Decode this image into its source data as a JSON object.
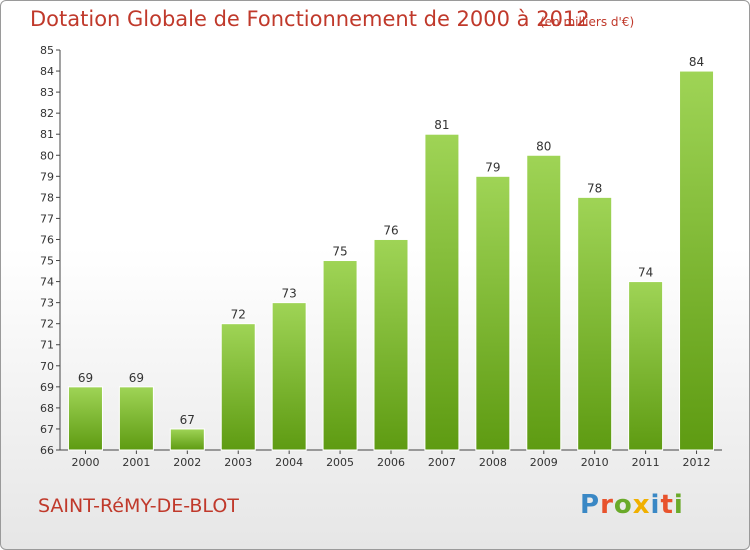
{
  "chart_data": {
    "type": "bar",
    "title": "Dotation Globale de Fonctionnement de 2000 à 2012",
    "subtitle": "(en milliers d'€)",
    "categories": [
      "2000",
      "2001",
      "2002",
      "2003",
      "2004",
      "2005",
      "2006",
      "2007",
      "2008",
      "2009",
      "2010",
      "2011",
      "2012"
    ],
    "values": [
      69,
      69,
      67,
      72,
      73,
      75,
      76,
      81,
      79,
      80,
      78,
      74,
      84
    ],
    "ylim": [
      66,
      85
    ],
    "yticks": [
      66,
      67,
      68,
      69,
      70,
      71,
      72,
      73,
      74,
      75,
      76,
      77,
      78,
      79,
      80,
      81,
      82,
      83,
      84,
      85
    ],
    "grid": false,
    "bar_color_top": "#9fd456",
    "bar_color_bottom": "#5e9b12"
  },
  "footer": {
    "commune": "SAINT-RéMY-DE-BLOT",
    "logo": [
      "P",
      "r",
      "o",
      "x",
      "i",
      "t",
      "i"
    ],
    "logo_colors": [
      "#3a88c5",
      "#e8532d",
      "#6aaa2a",
      "#f0b000",
      "#3a88c5",
      "#e8532d",
      "#6aaa2a"
    ]
  },
  "colors": {
    "title": "#c0392b",
    "axis": "#444444"
  }
}
